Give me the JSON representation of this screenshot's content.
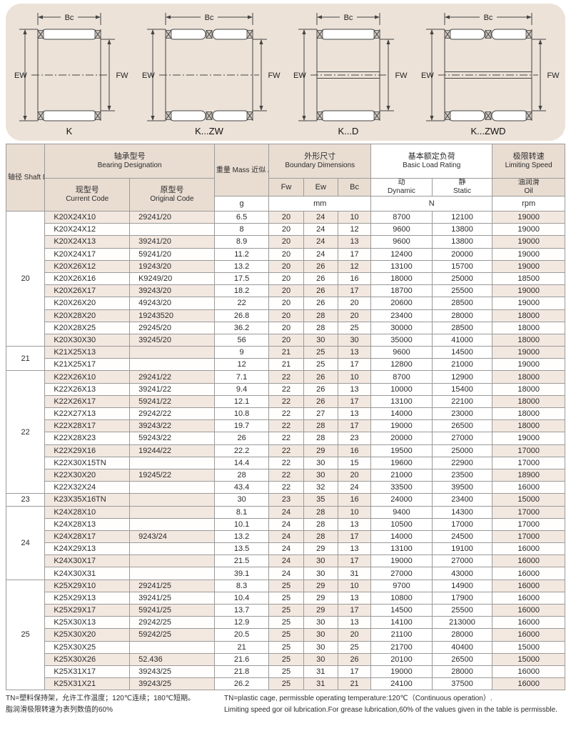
{
  "diagram_panel": {
    "diagrams": [
      {
        "name": "K",
        "bc": "Bc",
        "ew": "EW",
        "fw": "FW",
        "double_row": false,
        "double_center": false
      },
      {
        "name": "K...ZW",
        "bc": "Bc",
        "ew": "EW",
        "fw": "FW",
        "double_row": true,
        "double_center": false
      },
      {
        "name": "K...D",
        "bc": "Bc",
        "ew": "EW",
        "fw": "FW",
        "double_row": false,
        "double_center": true
      },
      {
        "name": "K...ZWD",
        "bc": "Bc",
        "ew": "EW",
        "fw": "FW",
        "double_row": true,
        "double_center": true
      }
    ]
  },
  "table": {
    "header": {
      "shaft": "轴径\nShaft\nDiameter\n（mm）",
      "designation_zh": "轴承型号",
      "designation_en": "Bearing Designation",
      "current_zh": "现型号",
      "current_en": "Current Code",
      "original_zh": "原型号",
      "original_en": "Original Code",
      "mass": "重量\nMass\n近似\nApprox",
      "mass_unit": "g",
      "dims_zh": "外形尺寸",
      "dims_en": "Boundary Dimensions",
      "col_fw": "Fw",
      "col_ew": "Ew",
      "col_bc": "Bc",
      "dims_unit": "mm",
      "load_zh": "基本额定负荷",
      "load_en": "Basic Load Rating",
      "dynamic_zh": "动",
      "dynamic_en": "Dynamic",
      "static_zh": "静",
      "static_en": "Static",
      "load_unit": "N",
      "speed_zh": "极限转速",
      "speed_en": "Limiting Speed",
      "oil_zh": "油润滑",
      "oil_en": "Oil",
      "speed_unit": "rpm"
    },
    "groups": [
      {
        "shaft": "20",
        "rows": [
          [
            "K20X24X10",
            "29241/20",
            "6.5",
            "20",
            "24",
            "10",
            "8700",
            "12100",
            "19000"
          ],
          [
            "K20X24X12",
            "",
            "8",
            "20",
            "24",
            "12",
            "9600",
            "13800",
            "19000"
          ],
          [
            "K20X24X13",
            "39241/20",
            "8.9",
            "20",
            "24",
            "13",
            "9600",
            "13800",
            "19000"
          ],
          [
            "K20X24X17",
            "59241/20",
            "11.2",
            "20",
            "24",
            "17",
            "12400",
            "20000",
            "19000"
          ],
          [
            "K20X26X12",
            "19243/20",
            "13.2",
            "20",
            "26",
            "12",
            "13100",
            "15700",
            "19000"
          ],
          [
            "K20X26X16",
            "K9249/20",
            "17.5",
            "20",
            "26",
            "16",
            "18000",
            "25000",
            "18500"
          ],
          [
            "K20X26X17",
            "39243/20",
            "18.2",
            "20",
            "26",
            "17",
            "18700",
            "25500",
            "19000"
          ],
          [
            "K20X26X20",
            "49243/20",
            "22",
            "20",
            "26",
            "20",
            "20600",
            "28500",
            "19000"
          ],
          [
            "K20X28X20",
            "19243520",
            "26.8",
            "20",
            "28",
            "20",
            "23400",
            "28000",
            "18000"
          ],
          [
            "K20X28X25",
            "29245/20",
            "36.2",
            "20",
            "28",
            "25",
            "30000",
            "28500",
            "18000"
          ],
          [
            "K20X30X30",
            "39245/20",
            "56",
            "20",
            "30",
            "30",
            "35000",
            "41000",
            "18000"
          ]
        ]
      },
      {
        "shaft": "21",
        "rows": [
          [
            "K21X25X13",
            "",
            "9",
            "21",
            "25",
            "13",
            "9600",
            "14500",
            "19000"
          ],
          [
            "K21X25X17",
            "",
            "12",
            "21",
            "25",
            "17",
            "12800",
            "21000",
            "19000"
          ]
        ]
      },
      {
        "shaft": "22",
        "rows": [
          [
            "K22X26X10",
            "29241/22",
            "7.1",
            "22",
            "26",
            "10",
            "8700",
            "12900",
            "18000"
          ],
          [
            "K22X26X13",
            "39241/22",
            "9.4",
            "22",
            "26",
            "13",
            "10000",
            "15400",
            "18000"
          ],
          [
            "K22X26X17",
            "59241/22",
            "12.1",
            "22",
            "26",
            "17",
            "13100",
            "22100",
            "18000"
          ],
          [
            "K22X27X13",
            "29242/22",
            "10.8",
            "22",
            "27",
            "13",
            "14000",
            "23000",
            "18000"
          ],
          [
            "K22X28X17",
            "39243/22",
            "19.7",
            "22",
            "28",
            "17",
            "19000",
            "26500",
            "18000"
          ],
          [
            "K22X28X23",
            "59243/22",
            "26",
            "22",
            "28",
            "23",
            "20000",
            "27000",
            "19000"
          ],
          [
            "K22X29X16",
            "19244/22",
            "22.2",
            "22",
            "29",
            "16",
            "19500",
            "25000",
            "17000"
          ],
          [
            "K22X30X15TN",
            "",
            "14.4",
            "22",
            "30",
            "15",
            "19600",
            "22900",
            "17000"
          ],
          [
            "K22X30X20",
            "19245/22",
            "28",
            "22",
            "30",
            "20",
            "21000",
            "23500",
            "18900"
          ],
          [
            "K22X32X24",
            "",
            "43.4",
            "22",
            "32",
            "24",
            "33500",
            "39500",
            "16000"
          ]
        ]
      },
      {
        "shaft": "23",
        "rows": [
          [
            "K23X35X16TN",
            "",
            "30",
            "23",
            "35",
            "16",
            "24000",
            "23400",
            "15000"
          ]
        ]
      },
      {
        "shaft": "24",
        "rows": [
          [
            "K24X28X10",
            "",
            "8.1",
            "24",
            "28",
            "10",
            "9400",
            "14300",
            "17000"
          ],
          [
            "K24X28X13",
            "",
            "10.1",
            "24",
            "28",
            "13",
            "10500",
            "17000",
            "17000"
          ],
          [
            "K24X28X17",
            "9243/24",
            "13.2",
            "24",
            "28",
            "17",
            "14000",
            "24500",
            "17000"
          ],
          [
            "K24X29X13",
            "",
            "13.5",
            "24",
            "29",
            "13",
            "13100",
            "19100",
            "16000"
          ],
          [
            "K24X30X17",
            "",
            "21.5",
            "24",
            "30",
            "17",
            "19000",
            "27000",
            "16000"
          ],
          [
            "K24X30X31",
            "",
            "39.1",
            "24",
            "30",
            "31",
            "27000",
            "43000",
            "16000"
          ]
        ]
      },
      {
        "shaft": "25",
        "rows": [
          [
            "K25X29X10",
            "29241/25",
            "8.3",
            "25",
            "29",
            "10",
            "9700",
            "14900",
            "16000"
          ],
          [
            "K25X29X13",
            "39241/25",
            "10.4",
            "25",
            "29",
            "13",
            "10800",
            "17900",
            "16000"
          ],
          [
            "K25X29X17",
            "59241/25",
            "13.7",
            "25",
            "29",
            "17",
            "14500",
            "25500",
            "16000"
          ],
          [
            "K25X30X13",
            "29242/25",
            "12.9",
            "25",
            "30",
            "13",
            "14100",
            "213000",
            "16000"
          ],
          [
            "K25X30X20",
            "59242/25",
            "20.5",
            "25",
            "30",
            "20",
            "21100",
            "28000",
            "16000"
          ],
          [
            "K25X30X25",
            "",
            "21",
            "25",
            "30",
            "25",
            "21700",
            "40400",
            "15000"
          ],
          [
            "K25X30X26",
            "52.436",
            "21.6",
            "25",
            "30",
            "26",
            "20100",
            "26500",
            "15000"
          ],
          [
            "K25X31X17",
            "39243/25",
            "21.8",
            "25",
            "31",
            "17",
            "19000",
            "28000",
            "16000"
          ],
          [
            "K25X31X21",
            "39243/25",
            "26.2",
            "25",
            "31",
            "21",
            "24100",
            "37500",
            "16000"
          ]
        ]
      }
    ]
  },
  "footnotes": {
    "zh": [
      "TN=塑料保持架，允许工作温度；120℃连续；180℃短期。",
      "脂润滑极限转速为表列数值的60%"
    ],
    "en": [
      "TN=plastic cage, permissble operating temperature:120℃（Continuous operation）.",
      "Limiting speed gor oil lubrication.For grease lubrication,60% of the values given in the table is permissble."
    ]
  }
}
